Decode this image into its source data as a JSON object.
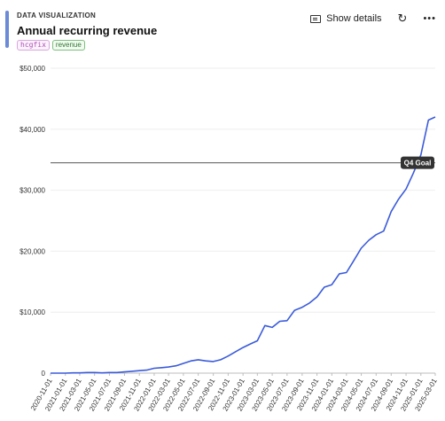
{
  "header": {
    "eyebrow": "DATA VISUALIZATION",
    "title": "Annual recurring revenue",
    "tags": [
      "hcgfix",
      "revenue"
    ],
    "actions": {
      "show_details_label": "Show details",
      "refresh_icon": "refresh-icon",
      "more_icon": "more-icon"
    }
  },
  "colors": {
    "accent": "#6b8bd6",
    "line": "#3b5bdb",
    "goal_line": "#777777",
    "goal_badge": "#333333"
  },
  "chart_data": {
    "type": "line",
    "title": "Annual recurring revenue",
    "xlabel": "",
    "ylabel": "",
    "ylim": [
      0,
      50000
    ],
    "yticks": [
      0,
      10000,
      20000,
      30000,
      40000,
      50000
    ],
    "ytick_labels": [
      "0",
      "$10,000",
      "$20,000",
      "$30,000",
      "$40,000",
      "$50,000"
    ],
    "xtick_labels": [
      "2020-11-01",
      "2021-01-01",
      "2021-03-01",
      "2021-05-01",
      "2021-07-01",
      "2021-09-01",
      "2021-11-01",
      "2022-01-01",
      "2022-03-01",
      "2022-05-01",
      "2022-07-01",
      "2022-09-01",
      "2022-11-01",
      "2023-01-01",
      "2023-03-01",
      "2023-05-01",
      "2023-07-01",
      "2023-09-01",
      "2023-11-01",
      "2024-01-01",
      "2024-03-01",
      "2024-05-01",
      "2024-07-01",
      "2024-09-01",
      "2024-11-01",
      "2025-01-01",
      "2025-03-01"
    ],
    "grid": true,
    "goal": {
      "label": "Q4 Goal",
      "value": 34500
    },
    "series": [
      {
        "name": "",
        "x": [
          "2020-11-01",
          "2020-12-01",
          "2021-01-01",
          "2021-02-01",
          "2021-03-01",
          "2021-04-01",
          "2021-05-01",
          "2021-06-01",
          "2021-07-01",
          "2021-08-01",
          "2021-09-01",
          "2021-10-01",
          "2021-11-01",
          "2021-12-01",
          "2022-01-01",
          "2022-02-01",
          "2022-03-01",
          "2022-04-01",
          "2022-05-01",
          "2022-06-01",
          "2022-07-01",
          "2022-08-01",
          "2022-09-01",
          "2022-10-01",
          "2022-11-01",
          "2022-12-01",
          "2023-01-01",
          "2023-02-01",
          "2023-03-01",
          "2023-04-01",
          "2023-05-01",
          "2023-06-01",
          "2023-07-01",
          "2023-08-01",
          "2023-09-01",
          "2023-10-01",
          "2023-11-01",
          "2023-12-01",
          "2024-01-01",
          "2024-02-01",
          "2024-03-01",
          "2024-04-01",
          "2024-05-01",
          "2024-06-01",
          "2024-07-01",
          "2024-08-01",
          "2024-09-01",
          "2024-10-01",
          "2024-11-01",
          "2024-12-01",
          "2025-01-01",
          "2025-02-01",
          "2025-03-01"
        ],
        "values": [
          0,
          0,
          0,
          50,
          50,
          100,
          100,
          50,
          100,
          100,
          200,
          300,
          400,
          500,
          800,
          900,
          1000,
          1200,
          1600,
          2000,
          2200,
          2000,
          1900,
          2200,
          2800,
          3500,
          4200,
          4800,
          5300,
          7800,
          7500,
          8500,
          8600,
          10300,
          10800,
          11500,
          12500,
          14100,
          14500,
          16300,
          16500,
          18500,
          20500,
          21800,
          22700,
          23300,
          26500,
          28500,
          30200,
          32800,
          35800,
          41500,
          42000
        ]
      }
    ]
  }
}
